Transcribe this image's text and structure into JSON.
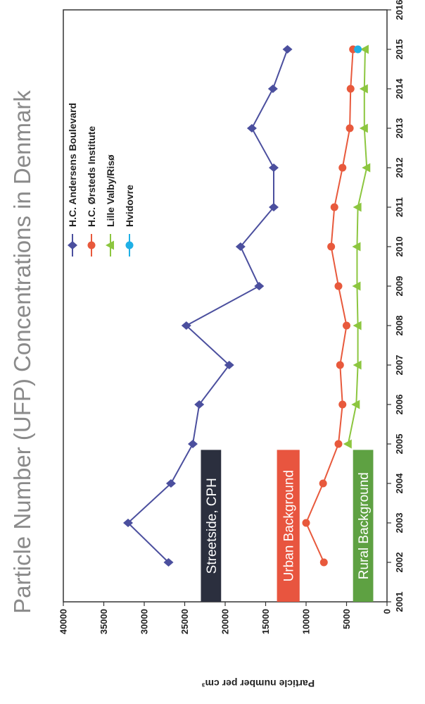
{
  "chart_data": {
    "type": "line",
    "title": "Particle Number (UFP) Concentrations in Denmark",
    "ylabel": "Particle number per cm³",
    "xlabel": "",
    "xlim": [
      2001,
      2016
    ],
    "ylim": [
      0,
      40000
    ],
    "x_ticks": [
      "2001",
      "2002",
      "2003",
      "2004",
      "2005",
      "2006",
      "2007",
      "2008",
      "2009",
      "2010",
      "2011",
      "2012",
      "2013",
      "2014",
      "2015",
      "2016"
    ],
    "y_ticks": [
      "0",
      "5000",
      "10000",
      "15000",
      "20000",
      "25000",
      "30000",
      "35000",
      "40000"
    ],
    "legend_position": "top-right",
    "series": [
      {
        "name": "H.C. Andersens Boulevard",
        "color": "#4b4f9e",
        "marker": "diamond",
        "x": [
          2002,
          2003,
          2004,
          2005,
          2006,
          2007,
          2008,
          2009,
          2010,
          2011,
          2012,
          2013,
          2014,
          2015
        ],
        "y": [
          27000,
          32000,
          26700,
          24000,
          23200,
          19500,
          24800,
          15800,
          18100,
          14000,
          14000,
          16700,
          14100,
          12300
        ]
      },
      {
        "name": "H.C. Ørsteds Institute",
        "color": "#e8593c",
        "marker": "circle",
        "x": [
          2002,
          2003,
          2004,
          2005,
          2006,
          2007,
          2008,
          2009,
          2010,
          2011,
          2012,
          2013,
          2014,
          2015
        ],
        "y": [
          7800,
          10000,
          7900,
          6000,
          5500,
          5800,
          5000,
          6000,
          6900,
          6500,
          5500,
          4600,
          4500,
          4200
        ]
      },
      {
        "name": "Lille Valby/Risø",
        "color": "#8cc63f",
        "marker": "triangle",
        "x": [
          2005,
          2006,
          2007,
          2008,
          2009,
          2010,
          2011,
          2012,
          2013,
          2014,
          2015
        ],
        "y": [
          4800,
          3800,
          3600,
          3600,
          3700,
          3700,
          3600,
          2500,
          2800,
          2800,
          2700
        ]
      },
      {
        "name": "Hvidovre",
        "color": "#1fb0e6",
        "marker": "circle",
        "x": [
          2015
        ],
        "y": [
          3600
        ]
      }
    ],
    "regions": [
      {
        "label": "Streetside, CPH",
        "color": "#2b2f3e",
        "from": 20500,
        "to": 23000
      },
      {
        "label": "Urban Background",
        "color": "#e8553f",
        "from": 10800,
        "to": 13600
      },
      {
        "label": "Rural Background",
        "color": "#5ea142",
        "from": 1700,
        "to": 4200
      }
    ]
  }
}
